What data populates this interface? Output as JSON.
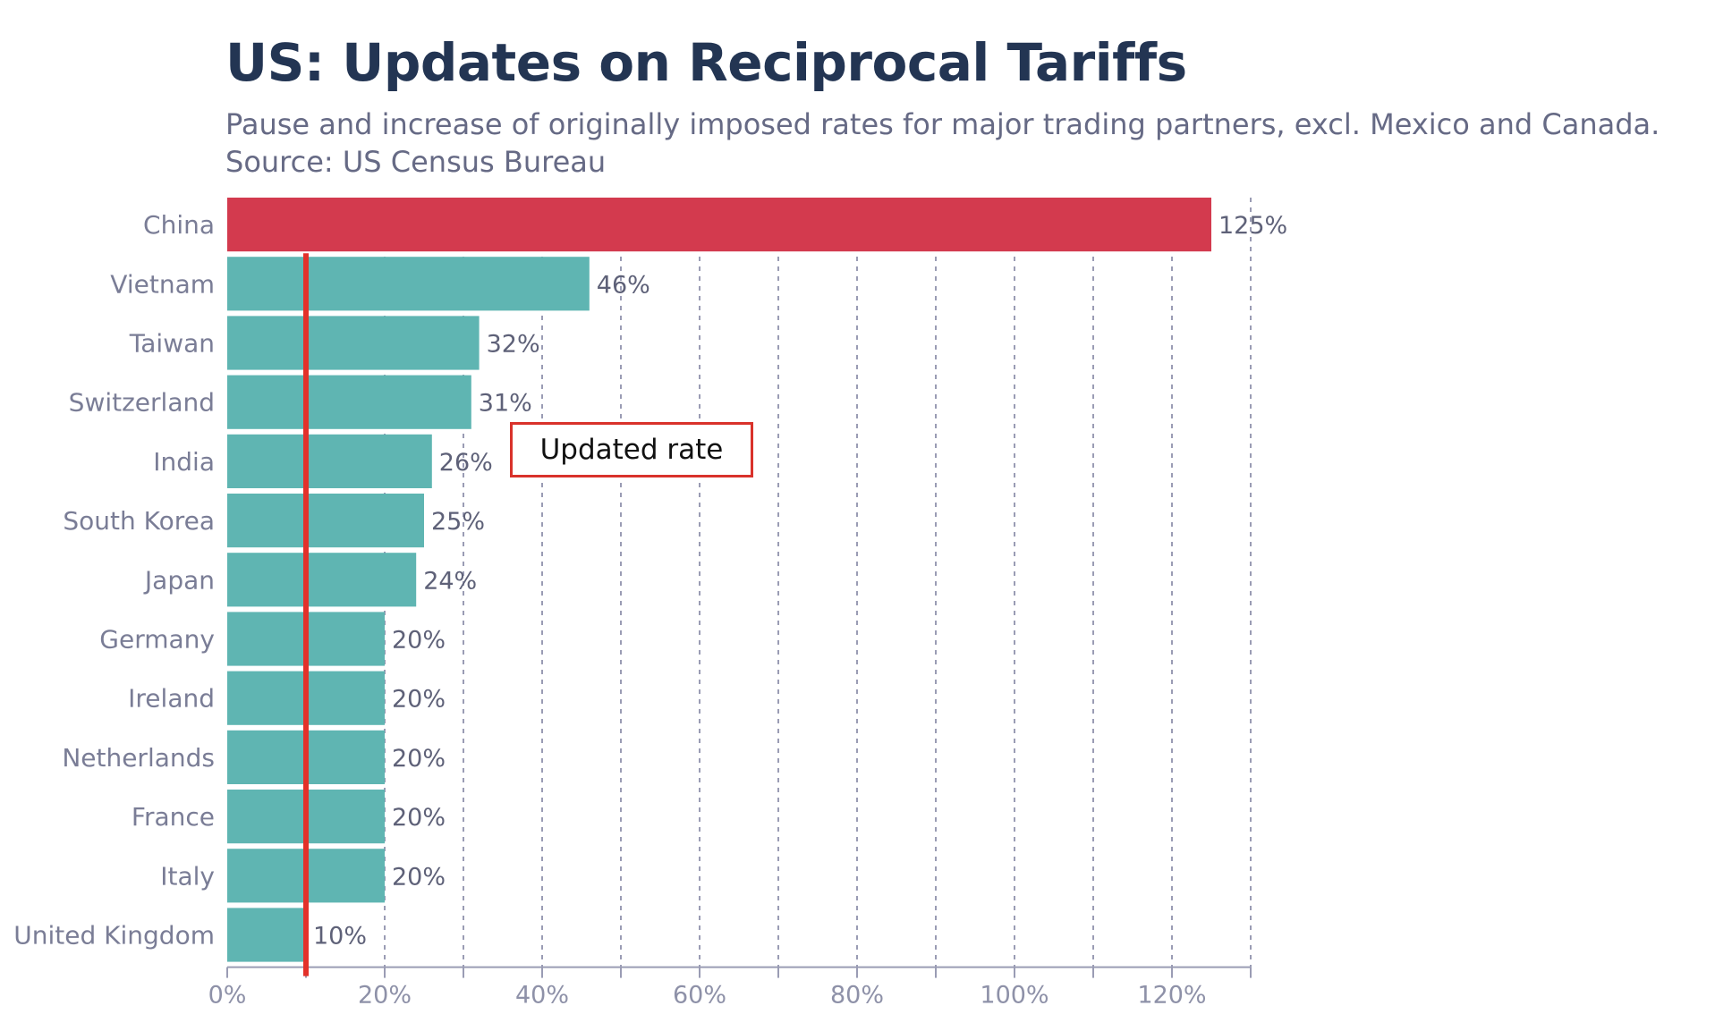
{
  "chart_data": {
    "type": "bar",
    "orientation": "horizontal",
    "title": "US: Updates on Reciprocal Tariffs",
    "subtitle_lines": [
      "Pause and increase of originally imposed rates for major trading partners, excl. Mexico and Canada.",
      "Source: US Census Bureau"
    ],
    "categories": [
      "China",
      "Vietnam",
      "Taiwan",
      "Switzerland",
      "India",
      "South Korea",
      "Japan",
      "Germany",
      "Ireland",
      "Netherlands",
      "France",
      "Italy",
      "United Kingdom"
    ],
    "values": [
      125,
      46,
      32,
      31,
      26,
      25,
      24,
      20,
      20,
      20,
      20,
      20,
      10
    ],
    "value_labels": [
      "125%",
      "46%",
      "32%",
      "31%",
      "26%",
      "25%",
      "24%",
      "20%",
      "20%",
      "20%",
      "20%",
      "20%",
      "10%"
    ],
    "highlight_category": "China",
    "xlim": [
      0,
      130
    ],
    "x_ticks": [
      0,
      20,
      40,
      60,
      80,
      100,
      120
    ],
    "x_tick_labels": [
      "0%",
      "20%",
      "40%",
      "60%",
      "80%",
      "100%",
      "120%"
    ],
    "minor_grid_step": 10,
    "grid": true,
    "reference_line": {
      "value": 10,
      "color": "#e3312a"
    },
    "annotation": "Updated rate",
    "colors": {
      "bar": "#5fb5b2",
      "highlight_bar": "#d33a4e",
      "title": "#233553",
      "grid": "#9a9cb4",
      "reference_line": "#e3312a"
    }
  }
}
